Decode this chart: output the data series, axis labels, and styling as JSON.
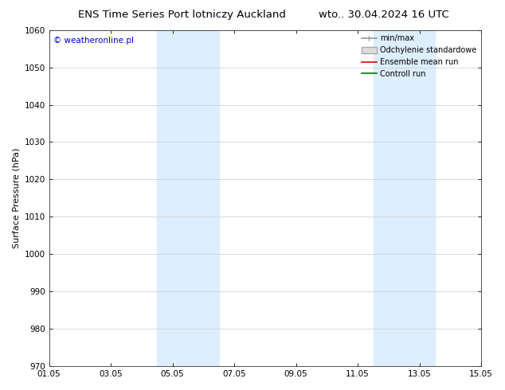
{
  "title_left": "ENS Time Series Port lotniczy Auckland",
  "title_right": "wto.. 30.04.2024 16 UTC",
  "ylabel": "Surface Pressure (hPa)",
  "ylim": [
    970,
    1060
  ],
  "yticks": [
    970,
    980,
    990,
    1000,
    1010,
    1020,
    1030,
    1040,
    1050,
    1060
  ],
  "xlim_start": 0,
  "xlim_end": 14,
  "xtick_positions": [
    0,
    2,
    4,
    6,
    8,
    10,
    12,
    14
  ],
  "xtick_labels": [
    "01.05",
    "03.05",
    "05.05",
    "07.05",
    "09.05",
    "11.05",
    "13.05",
    "15.05"
  ],
  "shade_bands": [
    {
      "xmin": 3.5,
      "xmax": 5.5
    },
    {
      "xmin": 10.5,
      "xmax": 12.5
    }
  ],
  "shade_color": "#ddeeff",
  "watermark_text": "© weatheronline.pl",
  "watermark_color": "#0000cc",
  "legend_entries": [
    {
      "label": "min/max",
      "type": "line",
      "color": "#999999",
      "lw": 1.2
    },
    {
      "label": "Odchylenie standardowe",
      "type": "patch",
      "facecolor": "#dddddd",
      "edgecolor": "#aaaaaa"
    },
    {
      "label": "Ensemble mean run",
      "type": "line",
      "color": "#dd0000",
      "lw": 1.2
    },
    {
      "label": "Controll run",
      "type": "line",
      "color": "#007700",
      "lw": 1.2
    }
  ],
  "bg_color": "#ffffff",
  "grid_color": "#cccccc",
  "title_fontsize": 9.5,
  "axis_fontsize": 8,
  "tick_fontsize": 7.5,
  "legend_fontsize": 7,
  "watermark_fontsize": 7.5
}
